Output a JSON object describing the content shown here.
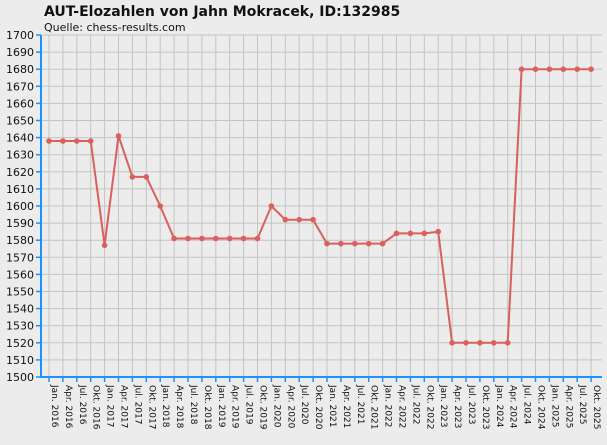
{
  "chart_data": {
    "type": "line",
    "title": "AUT-Elozahlen von Jahn Mokracek, ID:132985",
    "subtitle": "Quelle: chess-results.com",
    "xlabel": "",
    "ylabel": "",
    "ylim": [
      1500,
      1700
    ],
    "y_ticks": [
      1500,
      1510,
      1520,
      1530,
      1540,
      1550,
      1560,
      1570,
      1580,
      1590,
      1600,
      1610,
      1620,
      1630,
      1640,
      1650,
      1660,
      1670,
      1680,
      1690,
      1700
    ],
    "grid": true,
    "legend": "none",
    "colors": {
      "series": "#d9605c",
      "axis": "#1e90ff",
      "grid": "#c4c4c4",
      "background": "#ececec"
    },
    "categories": [
      "Jan. 2016",
      "Apr. 2016",
      "Jul. 2016",
      "Okt. 2016",
      "Jan. 2017",
      "Apr. 2017",
      "Jul. 2017",
      "Okt. 2017",
      "Jan. 2018",
      "Apr. 2018",
      "Jul. 2018",
      "Okt. 2018",
      "Jan. 2019",
      "Apr. 2019",
      "Jul. 2019",
      "Okt. 2019",
      "Jan. 2020",
      "Apr. 2020",
      "Jul. 2020",
      "Okt. 2020",
      "Jan. 2021",
      "Apr. 2021",
      "Jul. 2021",
      "Okt. 2021",
      "Jan. 2022",
      "Apr. 2022",
      "Jul. 2022",
      "Okt. 2022",
      "Jan. 2023",
      "Apr. 2023",
      "Jul. 2023",
      "Okt. 2023",
      "Jan. 2024",
      "Apr. 2024",
      "Jul. 2024",
      "Okt. 2024",
      "Jan. 2025",
      "Apr. 2025",
      "Jul. 2025",
      "Okt. 2025"
    ],
    "series": [
      {
        "values": [
          1638,
          1638,
          1638,
          1638,
          1577,
          1641,
          1617,
          1617,
          1600,
          1581,
          1581,
          1581,
          1581,
          1581,
          1581,
          1581,
          1600,
          1592,
          1592,
          1592,
          1578,
          1578,
          1578,
          1578,
          1578,
          1584,
          1584,
          1584,
          1585,
          1520,
          1520,
          1520,
          1520,
          1520,
          1680,
          1680,
          1680,
          1680,
          1680,
          1680
        ]
      }
    ]
  }
}
